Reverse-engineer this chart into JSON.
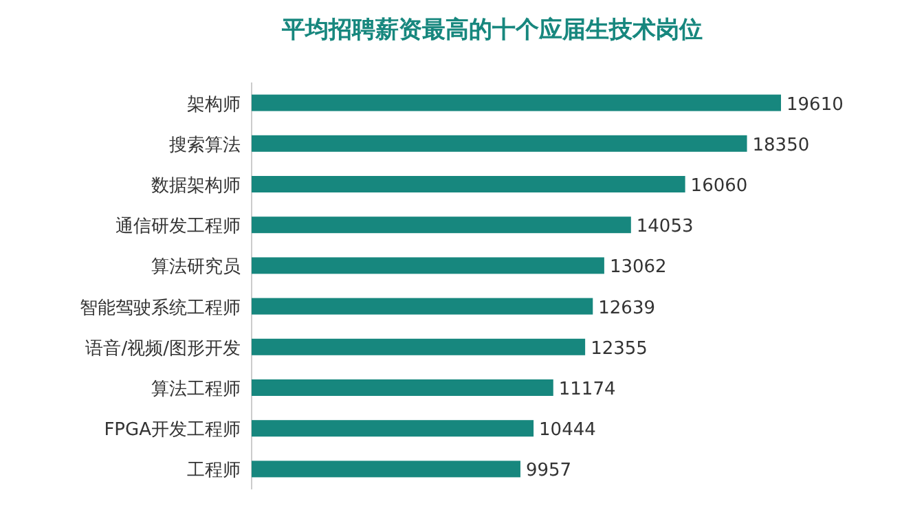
{
  "chart_data": {
    "type": "bar",
    "orientation": "horizontal",
    "title": "平均招聘薪资最高的十个应届生技术岗位",
    "categories": [
      "架构师",
      "搜索算法",
      "数据架构师",
      "通信研发工程师",
      "算法研究员",
      "智能驾驶系统工程师",
      "语音/视频/图形开发",
      "算法工程师",
      "FPGA开发工程师",
      "工程师"
    ],
    "values": [
      19610,
      18350,
      16060,
      14053,
      13062,
      12639,
      12355,
      11174,
      10444,
      9957
    ],
    "color": "#17877e",
    "data_labels": true
  }
}
